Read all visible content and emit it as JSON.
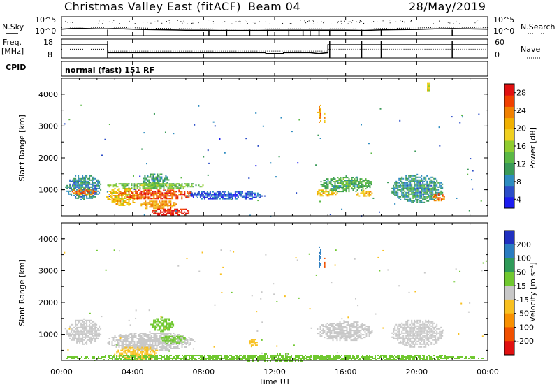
{
  "header": {
    "station": "Christmas Valley East (fitACF)",
    "beam": "Beam 04",
    "date": "28/May/2019",
    "mode": "normal (fast) 151 RF"
  },
  "left_labels": {
    "nsky": "N.Sky",
    "freq": "Freq.",
    "freq_unit": "[MHz]",
    "cpid": "CPID"
  },
  "right_labels": {
    "nsearch": "N.Search",
    "nave": "Nave"
  },
  "chart_data": [
    {
      "type": "line",
      "panel": "noise",
      "y_ticks": [
        "10^5",
        "10^0"
      ],
      "right_y_ticks": [
        "10^5",
        "10^0"
      ],
      "series": [
        {
          "name": "N.Sky",
          "style": "solid"
        },
        {
          "name": "N.Search",
          "style": "dotted"
        }
      ],
      "noise_level": [
        [
          0.0,
          1.4
        ],
        [
          0.5,
          1.6
        ],
        [
          1.0,
          1.7
        ],
        [
          1.5,
          1.6
        ],
        [
          2.0,
          1.5
        ],
        [
          2.5,
          1.5
        ],
        [
          3.0,
          1.6
        ],
        [
          3.5,
          1.5
        ],
        [
          4.0,
          1.4
        ],
        [
          4.5,
          1.3
        ],
        [
          5.0,
          1.2
        ],
        [
          6.0,
          1.1
        ],
        [
          7.0,
          1.0
        ],
        [
          8.0,
          1.0
        ],
        [
          9.0,
          0.9
        ],
        [
          10.0,
          0.9
        ],
        [
          11.0,
          0.9
        ],
        [
          12.0,
          1.0
        ],
        [
          13.0,
          1.0
        ],
        [
          14.0,
          1.0
        ],
        [
          15.0,
          1.0
        ],
        [
          16.0,
          1.0
        ],
        [
          17.0,
          0.9
        ],
        [
          18.0,
          1.1
        ],
        [
          19.0,
          1.2
        ],
        [
          20.0,
          1.3
        ],
        [
          21.0,
          1.5
        ],
        [
          22.0,
          1.6
        ],
        [
          23.0,
          1.5
        ],
        [
          24.0,
          1.4
        ]
      ],
      "dips_hours": [
        2.6,
        4.6,
        8.3,
        9.3,
        10.6,
        11.6,
        12.8,
        13.6,
        14.0,
        14.5,
        15.1,
        16.9,
        18.0,
        22.0
      ]
    },
    {
      "type": "line",
      "panel": "frequency",
      "left_y_ticks": [
        "18",
        "8"
      ],
      "right_y_ticks": [
        "60",
        "0"
      ],
      "series": [
        {
          "name": "Freq.",
          "style": "solid",
          "unit": "MHz"
        },
        {
          "name": "Nave",
          "style": "dotted"
        }
      ],
      "frequency_mhz": [
        [
          0.0,
          15.0
        ],
        [
          2.6,
          15.0
        ],
        [
          2.6,
          10.8
        ],
        [
          9.0,
          10.8
        ],
        [
          11.5,
          10.8
        ],
        [
          11.5,
          10.3
        ],
        [
          12.5,
          10.3
        ],
        [
          12.5,
          10.8
        ],
        [
          14.0,
          10.8
        ],
        [
          14.5,
          10.3
        ],
        [
          15.0,
          10.8
        ],
        [
          15.0,
          15.0
        ],
        [
          24.0,
          15.0
        ]
      ],
      "nave": [
        [
          0.0,
          28
        ],
        [
          2.6,
          28
        ],
        [
          2.6,
          22
        ],
        [
          15.0,
          22
        ],
        [
          15.0,
          28
        ],
        [
          24.0,
          28
        ]
      ],
      "ylim": [
        8,
        18
      ],
      "right_ylim": [
        0,
        60
      ]
    },
    {
      "type": "heatmap",
      "panel": "power",
      "ylabel": "Slant Range [km]",
      "y_ticks": [
        1000,
        2000,
        3000,
        4000
      ],
      "ylim": [
        180,
        4500
      ],
      "x_ticks": [
        "00:00",
        "04:00",
        "08:00",
        "12:00",
        "16:00",
        "20:00",
        "00:00"
      ],
      "xlim_hours": [
        0,
        24
      ],
      "colorbar": {
        "label": "Power [dB]",
        "ticks": [
          4,
          8,
          12,
          16,
          20,
          24,
          28
        ],
        "colors": [
          "#1c1cf0",
          "#2c4ec8",
          "#2e8cc0",
          "#3a9a58",
          "#5ab845",
          "#90cc30",
          "#f0d020",
          "#f0b000",
          "#f08000",
          "#f04000",
          "#e01010"
        ]
      },
      "echoes": [
        {
          "t0": 0.2,
          "t1": 2.2,
          "r0": 700,
          "r1": 1500,
          "v": 9
        },
        {
          "t0": 0.5,
          "t1": 2.0,
          "r0": 850,
          "r1": 1050,
          "v": 24
        },
        {
          "t0": 2.5,
          "t1": 4.3,
          "r0": 500,
          "r1": 1100,
          "v": 20
        },
        {
          "t0": 3.2,
          "t1": 7.5,
          "r0": 700,
          "r1": 1050,
          "v": 26
        },
        {
          "t0": 4.3,
          "t1": 6.5,
          "r0": 400,
          "r1": 700,
          "v": 22
        },
        {
          "t0": 5.0,
          "t1": 7.3,
          "r0": 200,
          "r1": 450,
          "v": 28
        },
        {
          "t0": 4.5,
          "t1": 6.0,
          "r0": 1100,
          "r1": 1550,
          "v": 10
        },
        {
          "t0": 2.5,
          "t1": 8.0,
          "r0": 1050,
          "r1": 1250,
          "v": 14
        },
        {
          "t0": 14.3,
          "t1": 15.5,
          "r0": 800,
          "r1": 1050,
          "v": 20
        },
        {
          "t0": 14.5,
          "t1": 17.5,
          "r0": 950,
          "r1": 1450,
          "v": 12
        },
        {
          "t0": 16.5,
          "t1": 17.5,
          "r0": 800,
          "r1": 1000,
          "v": 21
        },
        {
          "t0": 18.5,
          "t1": 21.5,
          "r0": 600,
          "r1": 1500,
          "v": 10
        },
        {
          "t0": 20.8,
          "t1": 21.6,
          "r0": 650,
          "r1": 900,
          "v": 24
        },
        {
          "t0": 7.0,
          "t1": 11.5,
          "r0": 700,
          "r1": 1000,
          "v": 6
        },
        {
          "t0": 14.4,
          "t1": 14.6,
          "r0": 3100,
          "r1": 3800,
          "v": 22
        },
        {
          "t0": 14.7,
          "t1": 14.8,
          "r0": 3100,
          "r1": 3450,
          "v": 21
        },
        {
          "t0": 20.5,
          "t1": 20.7,
          "r0": 4100,
          "r1": 4400,
          "v": 18
        }
      ]
    },
    {
      "type": "heatmap",
      "panel": "velocity",
      "ylabel": "Slant Range [km]",
      "xlabel": "Time UT",
      "y_ticks": [
        1000,
        2000,
        3000,
        4000
      ],
      "ylim": [
        180,
        4500
      ],
      "x_ticks": [
        "00:00",
        "04:00",
        "08:00",
        "12:00",
        "16:00",
        "20:00",
        "00:00"
      ],
      "xlim_hours": [
        0,
        24
      ],
      "colorbar": {
        "label": "Velocity [m s⁻¹]",
        "ticks": [
          200,
          100,
          50,
          15,
          -15,
          -50,
          -100,
          -200
        ],
        "colors": [
          "#2030c0",
          "#2a7cc0",
          "#2e9a58",
          "#70c830",
          "#c8c8c8",
          "#f8c020",
          "#f89000",
          "#f05000",
          "#e01010"
        ]
      },
      "echoes": [
        {
          "t0": 0.2,
          "t1": 2.2,
          "r0": 700,
          "r1": 1500,
          "v": 0
        },
        {
          "t0": 2.5,
          "t1": 7.5,
          "r0": 500,
          "r1": 1100,
          "v": 0
        },
        {
          "t0": 3.0,
          "t1": 5.5,
          "r0": 200,
          "r1": 650,
          "v": -40
        },
        {
          "t0": 5.0,
          "t1": 6.3,
          "r0": 1100,
          "r1": 1550,
          "v": 25
        },
        {
          "t0": 5.5,
          "t1": 7.0,
          "r0": 700,
          "r1": 1000,
          "v": 20
        },
        {
          "t0": 0.0,
          "t1": 24.0,
          "r0": 180,
          "r1": 400,
          "v": 20
        },
        {
          "t0": 10.5,
          "t1": 11.0,
          "r0": 600,
          "r1": 900,
          "v": -40
        },
        {
          "t0": 14.3,
          "t1": 17.5,
          "r0": 800,
          "r1": 1450,
          "v": 0
        },
        {
          "t0": 18.5,
          "t1": 21.5,
          "r0": 600,
          "r1": 1500,
          "v": 0
        },
        {
          "t0": 14.4,
          "t1": 14.6,
          "r0": 3100,
          "r1": 3800,
          "v": 120
        },
        {
          "t0": 14.7,
          "t1": 14.8,
          "r0": 3100,
          "r1": 3450,
          "v": -150
        }
      ]
    }
  ]
}
